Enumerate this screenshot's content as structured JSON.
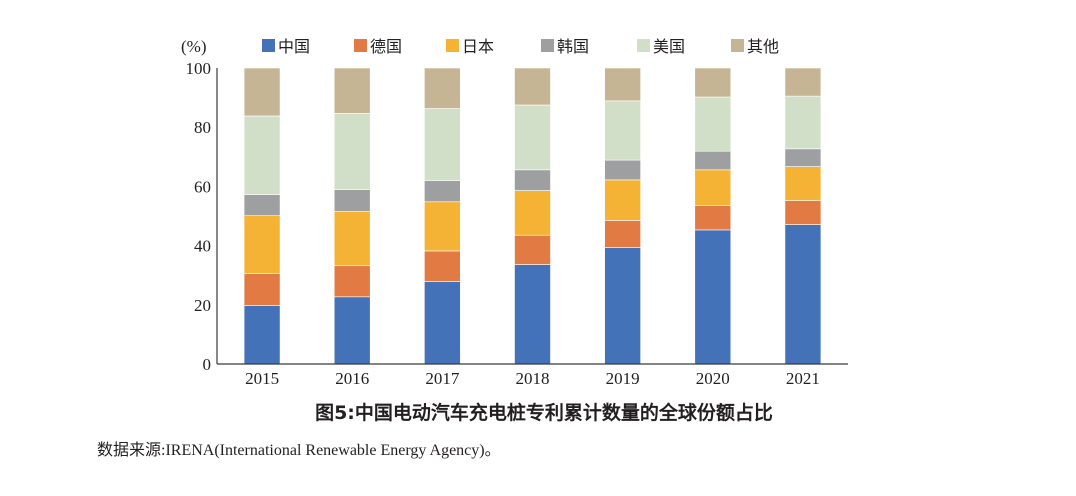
{
  "chart_data": {
    "type": "bar",
    "stacked": true,
    "title": "图5:中国电动汽车充电桩专利累计数量的全球份额占比",
    "xlabel": "",
    "ylabel": "(%)",
    "ylim": [
      0,
      100
    ],
    "yticks": [
      0,
      20,
      40,
      60,
      80,
      100
    ],
    "grid": false,
    "legend_position": "top",
    "categories": [
      "2015",
      "2016",
      "2017",
      "2018",
      "2019",
      "2020",
      "2021"
    ],
    "series": [
      {
        "name": "中国",
        "color": "#4472b8",
        "values": [
          19.8,
          22.7,
          27.9,
          33.6,
          39.4,
          45.3,
          47.1
        ]
      },
      {
        "name": "德国",
        "color": "#e27a43",
        "values": [
          10.8,
          10.5,
          10.3,
          9.9,
          9.1,
          8.3,
          8.1
        ]
      },
      {
        "name": "日本",
        "color": "#f5b335",
        "values": [
          19.5,
          18.3,
          16.6,
          15.1,
          13.7,
          12.0,
          11.5
        ]
      },
      {
        "name": "韩国",
        "color": "#9d9fa1",
        "values": [
          7.1,
          7.4,
          7.2,
          7.0,
          6.7,
          6.3,
          6.0
        ]
      },
      {
        "name": "美国",
        "color": "#d2dfc8",
        "values": [
          26.6,
          25.8,
          24.3,
          21.9,
          20.0,
          18.3,
          17.8
        ]
      },
      {
        "name": "其他",
        "color": "#c6b594",
        "values": [
          16.2,
          15.3,
          13.7,
          12.5,
          11.1,
          9.8,
          9.5
        ]
      }
    ]
  },
  "caption": "图5:中国电动汽车充电桩专利累计数量的全球份额占比",
  "source": "数据来源:IRENA(International Renewable Energy Agency)。"
}
